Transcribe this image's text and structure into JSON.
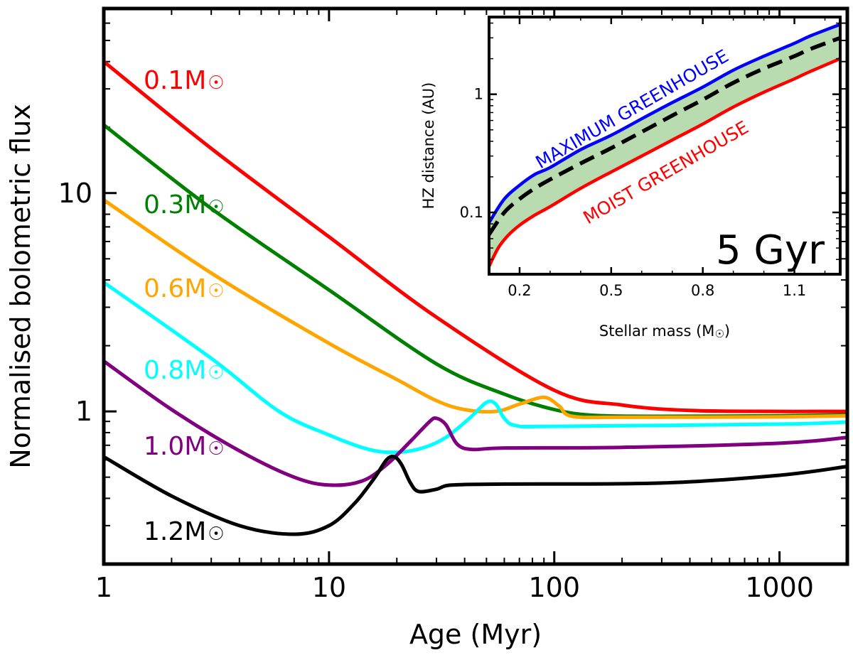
{
  "chart_data": [
    {
      "type": "line",
      "xscale": "log",
      "yscale": "log",
      "xlabel": "Age (Myr)",
      "ylabel": "Normalised bolometric flux",
      "xlim": [
        1,
        2000
      ],
      "ylim": [
        0.2,
        70
      ],
      "xticks": [
        {
          "value": 1,
          "label": "1"
        },
        {
          "value": 10,
          "label": "10"
        },
        {
          "value": 100,
          "label": "100"
        },
        {
          "value": 1000,
          "label": "1000"
        }
      ],
      "yticks": [
        {
          "value": 1,
          "label": "1"
        },
        {
          "value": 10,
          "label": "10"
        }
      ],
      "series": [
        {
          "name": "0.1M",
          "label": "0.1M",
          "color": "#ff0000",
          "points": [
            [
              1,
              40
            ],
            [
              3,
              16
            ],
            [
              10,
              6.3
            ],
            [
              30,
              2.7
            ],
            [
              100,
              1.25
            ],
            [
              200,
              1.07
            ],
            [
              400,
              1.01
            ],
            [
              1000,
              1.0
            ],
            [
              2000,
              1.0
            ]
          ]
        },
        {
          "name": "0.3M",
          "label": "0.3M",
          "color": "#008000",
          "points": [
            [
              1,
              20.5
            ],
            [
              3,
              8.5
            ],
            [
              10,
              3.6
            ],
            [
              30,
              1.65
            ],
            [
              60,
              1.2
            ],
            [
              100,
              1.02
            ],
            [
              150,
              0.96
            ],
            [
              300,
              0.95
            ],
            [
              1000,
              0.955
            ],
            [
              2000,
              0.965
            ]
          ]
        },
        {
          "name": "0.6M",
          "label": "0.6M",
          "color": "#ffa500",
          "points": [
            [
              1,
              9.3
            ],
            [
              3,
              4.3
            ],
            [
              10,
              2.05
            ],
            [
              20,
              1.4
            ],
            [
              30,
              1.12
            ],
            [
              40,
              1.02
            ],
            [
              55,
              1.0
            ],
            [
              70,
              1.08
            ],
            [
              90,
              1.16
            ],
            [
              105,
              1.06
            ],
            [
              120,
              0.95
            ],
            [
              200,
              0.94
            ],
            [
              1000,
              0.945
            ],
            [
              2000,
              0.955
            ]
          ]
        },
        {
          "name": "0.8M",
          "label": "0.8M",
          "color": "#00ffff",
          "points": [
            [
              1,
              3.9
            ],
            [
              3,
              1.75
            ],
            [
              6,
              1.0
            ],
            [
              10,
              0.78
            ],
            [
              15,
              0.67
            ],
            [
              20,
              0.65
            ],
            [
              26,
              0.68
            ],
            [
              33,
              0.76
            ],
            [
              42,
              0.93
            ],
            [
              50,
              1.1
            ],
            [
              55,
              1.08
            ],
            [
              60,
              0.93
            ],
            [
              68,
              0.86
            ],
            [
              100,
              0.855
            ],
            [
              1000,
              0.875
            ],
            [
              2000,
              0.895
            ]
          ]
        },
        {
          "name": "1.0M",
          "label": "1.0M",
          "color": "#800080",
          "points": [
            [
              1,
              1.7
            ],
            [
              2,
              1.02
            ],
            [
              4,
              0.66
            ],
            [
              7,
              0.5
            ],
            [
              10,
              0.46
            ],
            [
              14,
              0.48
            ],
            [
              18,
              0.57
            ],
            [
              23,
              0.73
            ],
            [
              28,
              0.9
            ],
            [
              30,
              0.93
            ],
            [
              33,
              0.87
            ],
            [
              37,
              0.71
            ],
            [
              43,
              0.67
            ],
            [
              60,
              0.68
            ],
            [
              200,
              0.685
            ],
            [
              1000,
              0.715
            ],
            [
              2000,
              0.76
            ]
          ]
        },
        {
          "name": "1.2M",
          "label": "1.2M",
          "color": "#000000",
          "points": [
            [
              1,
              0.62
            ],
            [
              2,
              0.41
            ],
            [
              4,
              0.3
            ],
            [
              7,
              0.274
            ],
            [
              10,
              0.3
            ],
            [
              13,
              0.38
            ],
            [
              16,
              0.5
            ],
            [
              18,
              0.6
            ],
            [
              19.5,
              0.62
            ],
            [
              21,
              0.57
            ],
            [
              23,
              0.47
            ],
            [
              25,
              0.43
            ],
            [
              30,
              0.44
            ],
            [
              35,
              0.46
            ],
            [
              60,
              0.465
            ],
            [
              300,
              0.47
            ],
            [
              1000,
              0.51
            ],
            [
              2000,
              0.56
            ]
          ]
        }
      ]
    },
    {
      "type": "area",
      "title": "5 Gyr",
      "xscale": "linear",
      "yscale": "log",
      "xlabel": "Stellar mass (M",
      "xlabel_suffix": ")",
      "ylabel": "HZ distance (AU)",
      "xlim": [
        0.1,
        1.25
      ],
      "ylim": [
        0.03,
        4.5
      ],
      "xticks": [
        {
          "value": 0.2,
          "label": "0.2"
        },
        {
          "value": 0.5,
          "label": "0.5"
        },
        {
          "value": 0.8,
          "label": "0.8"
        },
        {
          "value": 1.1,
          "label": "1.1"
        }
      ],
      "yticks": [
        {
          "value": 0.1,
          "label": "0.1"
        },
        {
          "value": 1,
          "label": "1"
        }
      ],
      "fill_color": "#b8dbb0",
      "series": [
        {
          "name": "MAXIMUM GREENHOUSE",
          "color": "#0000ff",
          "style": "solid",
          "points": [
            [
              0.1,
              0.082
            ],
            [
              0.15,
              0.13
            ],
            [
              0.2,
              0.17
            ],
            [
              0.25,
              0.21
            ],
            [
              0.3,
              0.24
            ],
            [
              0.4,
              0.34
            ],
            [
              0.5,
              0.45
            ],
            [
              0.6,
              0.62
            ],
            [
              0.7,
              0.85
            ],
            [
              0.8,
              1.15
            ],
            [
              0.9,
              1.6
            ],
            [
              1.0,
              2.1
            ],
            [
              1.1,
              2.7
            ],
            [
              1.15,
              3.1
            ],
            [
              1.25,
              3.9
            ]
          ]
        },
        {
          "name": "midline",
          "color": "#000000",
          "style": "dashed",
          "points": [
            [
              0.1,
              0.065
            ],
            [
              0.15,
              0.1
            ],
            [
              0.2,
              0.13
            ],
            [
              0.25,
              0.16
            ],
            [
              0.3,
              0.19
            ],
            [
              0.4,
              0.26
            ],
            [
              0.5,
              0.35
            ],
            [
              0.6,
              0.48
            ],
            [
              0.7,
              0.66
            ],
            [
              0.8,
              0.9
            ],
            [
              0.9,
              1.25
            ],
            [
              1.0,
              1.65
            ],
            [
              1.1,
              2.1
            ],
            [
              1.15,
              2.4
            ],
            [
              1.25,
              3.0
            ]
          ]
        },
        {
          "name": "MOIST GREENHOUSE",
          "color": "#ff0000",
          "style": "solid",
          "points": [
            [
              0.1,
              0.035
            ],
            [
              0.13,
              0.05
            ],
            [
              0.16,
              0.063
            ],
            [
              0.2,
              0.078
            ],
            [
              0.25,
              0.095
            ],
            [
              0.3,
              0.112
            ],
            [
              0.4,
              0.16
            ],
            [
              0.5,
              0.22
            ],
            [
              0.6,
              0.3
            ],
            [
              0.7,
              0.41
            ],
            [
              0.8,
              0.56
            ],
            [
              0.9,
              0.78
            ],
            [
              1.0,
              1.04
            ],
            [
              1.1,
              1.35
            ],
            [
              1.15,
              1.55
            ],
            [
              1.25,
              2.0
            ]
          ]
        }
      ]
    }
  ]
}
